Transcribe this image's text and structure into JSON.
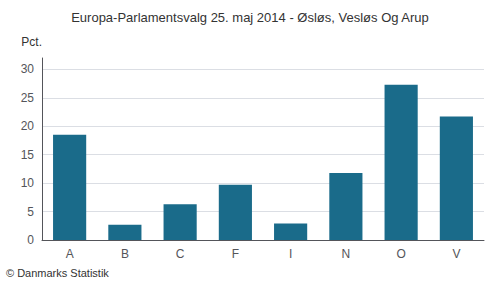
{
  "chart_data": {
    "type": "bar",
    "title": "Europa-Parlamentsvalg 25. maj 2014 - Øsløs, Vesløs Og Arup",
    "ylabel": "Pct.",
    "annotations": [
      "© Danmarks Statistik"
    ],
    "categories": [
      "A",
      "B",
      "C",
      "F",
      "I",
      "N",
      "O",
      "V"
    ],
    "values": [
      18.5,
      2.7,
      6.3,
      9.7,
      2.9,
      11.8,
      27.3,
      21.7
    ],
    "color": "#1a6b8a",
    "ylim": [
      0,
      32
    ],
    "yticks": [
      0,
      5,
      10,
      15,
      20,
      25,
      30
    ],
    "grid": true
  }
}
